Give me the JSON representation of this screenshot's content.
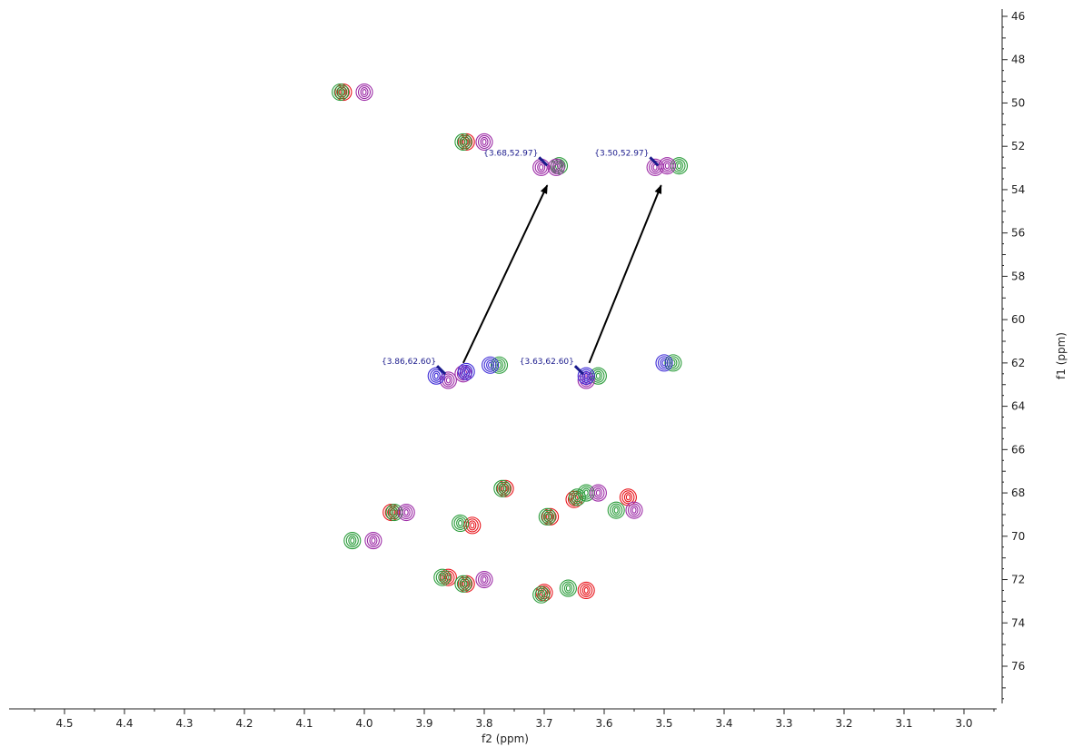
{
  "chart_data": {
    "type": "scatter",
    "title": "",
    "xlabel": "f2 (ppm)",
    "ylabel": "f1 (ppm)",
    "xlim": [
      4.59,
      2.95
    ],
    "ylim": [
      46,
      77.8
    ],
    "x_ticks": [
      "4.5",
      "4.4",
      "4.3",
      "4.2",
      "4.1",
      "4.0",
      "3.9",
      "3.8",
      "3.7",
      "3.6",
      "3.5",
      "3.4",
      "3.3",
      "3.2",
      "3.1",
      "3.0"
    ],
    "y_ticks": [
      "46",
      "48",
      "50",
      "52",
      "54",
      "56",
      "58",
      "60",
      "62",
      "64",
      "66",
      "68",
      "70",
      "72",
      "74",
      "76"
    ],
    "grid": false,
    "legend": "none",
    "series": [
      {
        "color": "#e8151b",
        "points": [
          {
            "x": 4.035,
            "y": 49.5
          },
          {
            "x": 3.83,
            "y": 51.8
          },
          {
            "x": 3.955,
            "y": 68.9
          },
          {
            "x": 3.765,
            "y": 67.8
          },
          {
            "x": 3.82,
            "y": 69.5
          },
          {
            "x": 3.65,
            "y": 68.3
          },
          {
            "x": 3.69,
            "y": 69.1
          },
          {
            "x": 3.56,
            "y": 68.2
          },
          {
            "x": 3.86,
            "y": 71.9
          },
          {
            "x": 3.83,
            "y": 72.2
          },
          {
            "x": 3.7,
            "y": 72.6
          },
          {
            "x": 3.63,
            "y": 72.5
          }
        ]
      },
      {
        "color": "#2a9c3a",
        "points": [
          {
            "x": 4.04,
            "y": 49.5
          },
          {
            "x": 3.835,
            "y": 51.8
          },
          {
            "x": 3.675,
            "y": 52.9
          },
          {
            "x": 3.475,
            "y": 52.9
          },
          {
            "x": 3.775,
            "y": 62.1
          },
          {
            "x": 3.61,
            "y": 62.6
          },
          {
            "x": 3.485,
            "y": 62.0
          },
          {
            "x": 3.95,
            "y": 68.9
          },
          {
            "x": 3.77,
            "y": 67.8
          },
          {
            "x": 3.84,
            "y": 69.4
          },
          {
            "x": 3.645,
            "y": 68.2
          },
          {
            "x": 3.63,
            "y": 68.0
          },
          {
            "x": 3.695,
            "y": 69.1
          },
          {
            "x": 3.58,
            "y": 68.8
          },
          {
            "x": 4.02,
            "y": 70.2
          },
          {
            "x": 3.87,
            "y": 71.9
          },
          {
            "x": 3.835,
            "y": 72.2
          },
          {
            "x": 3.705,
            "y": 72.7
          },
          {
            "x": 3.66,
            "y": 72.4
          }
        ]
      },
      {
        "color": "#9c2aa6",
        "points": [
          {
            "x": 4.0,
            "y": 49.5
          },
          {
            "x": 3.8,
            "y": 51.8
          },
          {
            "x": 3.705,
            "y": 52.97
          },
          {
            "x": 3.68,
            "y": 52.97
          },
          {
            "x": 3.515,
            "y": 52.97
          },
          {
            "x": 3.495,
            "y": 52.9
          },
          {
            "x": 3.86,
            "y": 62.8
          },
          {
            "x": 3.63,
            "y": 62.8
          },
          {
            "x": 3.93,
            "y": 68.9
          },
          {
            "x": 3.61,
            "y": 68.0
          },
          {
            "x": 3.55,
            "y": 68.8
          },
          {
            "x": 3.985,
            "y": 70.2
          },
          {
            "x": 3.8,
            "y": 72.0
          },
          {
            "x": 3.835,
            "y": 62.5
          }
        ]
      },
      {
        "color": "#3d2bd6",
        "points": [
          {
            "x": 3.88,
            "y": 62.6
          },
          {
            "x": 3.83,
            "y": 62.4
          },
          {
            "x": 3.79,
            "y": 62.1
          },
          {
            "x": 3.63,
            "y": 62.6
          },
          {
            "x": 3.5,
            "y": 62.0
          }
        ]
      }
    ],
    "annotations": [
      {
        "text": "{3.68,52.97}",
        "x": 3.695,
        "y": 52.97
      },
      {
        "text": "{3.50,52.97}",
        "x": 3.51,
        "y": 52.97
      },
      {
        "text": "{3.86,62.60}",
        "x": 3.865,
        "y": 62.6
      },
      {
        "text": "{3.63,62.60}",
        "x": 3.635,
        "y": 62.6
      }
    ],
    "arrows": [
      {
        "from": [
          3.835,
          62.0
        ],
        "to": [
          3.695,
          53.8
        ]
      },
      {
        "from": [
          3.625,
          62.0
        ],
        "to": [
          3.505,
          53.8
        ]
      }
    ],
    "annotation_color": "#1a1a8c"
  }
}
